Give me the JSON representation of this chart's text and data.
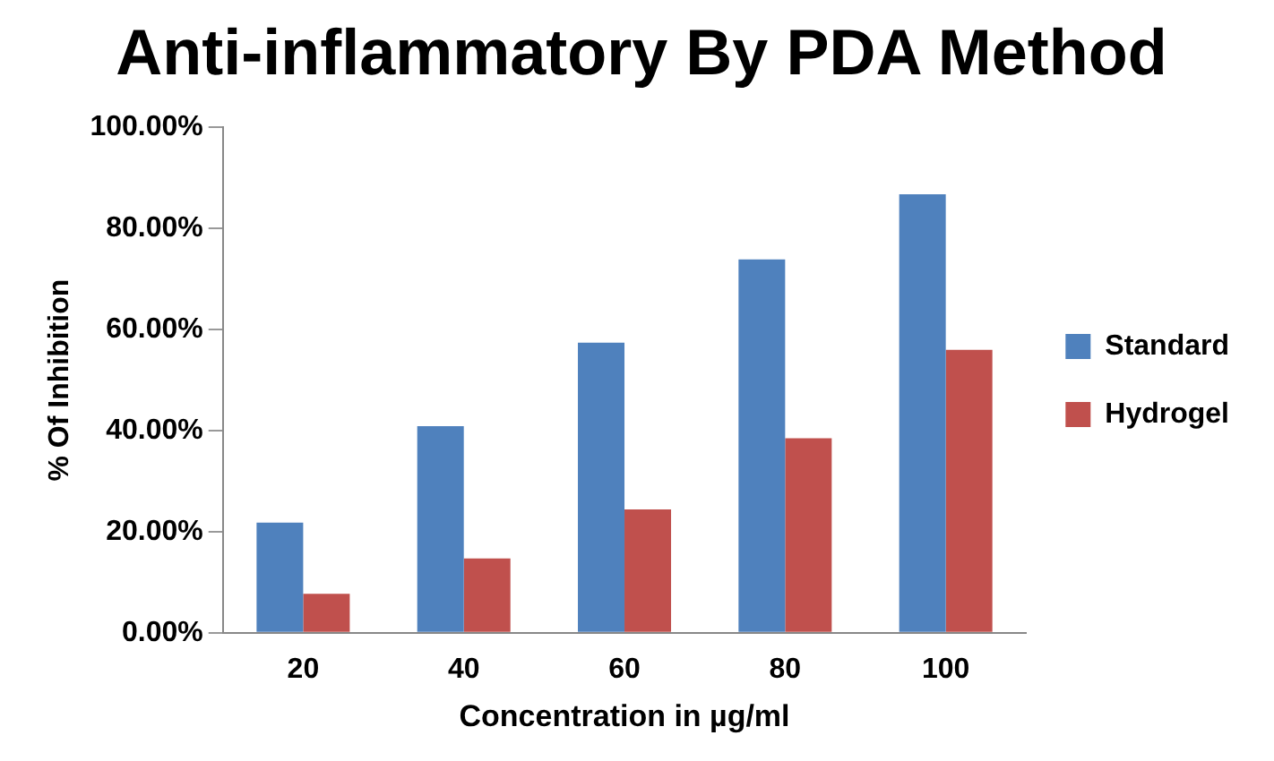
{
  "chart_data": {
    "type": "bar",
    "title": "Anti-inflammatory By PDA Method",
    "xlabel": "Concentration in µg/ml",
    "ylabel": "% Of Inhibition",
    "categories": [
      "20",
      "40",
      "60",
      "80",
      "100"
    ],
    "series": [
      {
        "name": "Standard",
        "color": "#4f81bd",
        "values": [
          21.8,
          40.9,
          57.4,
          73.9,
          86.8
        ]
      },
      {
        "name": "Hydrogel",
        "color": "#c0504d",
        "values": [
          7.7,
          14.7,
          24.4,
          38.5,
          56.0
        ]
      }
    ],
    "ylim": [
      0,
      100
    ],
    "yticks": [
      {
        "value": 0,
        "label": "0.00%"
      },
      {
        "value": 20,
        "label": "20.00%"
      },
      {
        "value": 40,
        "label": "40.00%"
      },
      {
        "value": 60,
        "label": "60.00%"
      },
      {
        "value": 80,
        "label": "80.00%"
      },
      {
        "value": 100,
        "label": "100.00%"
      }
    ],
    "grid": false,
    "legend": "right"
  }
}
